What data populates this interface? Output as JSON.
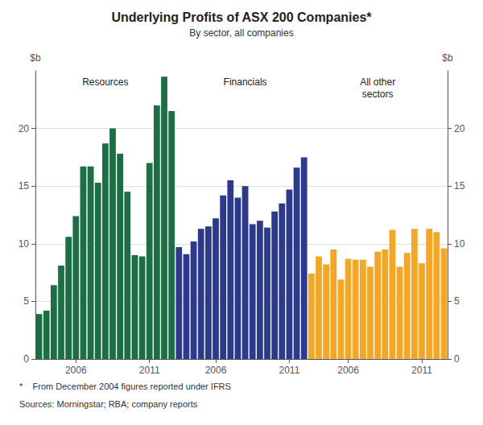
{
  "chart_data": {
    "type": "bar",
    "title": "Underlying Profits of ASX 200 Companies*",
    "subtitle": "By sector, all companies",
    "ylabel": "$b",
    "y2label": "$b",
    "annotations": [
      "*    From December 2004 figures reported under IFRS",
      "Sources: Morningstar; RBA; company reports"
    ],
    "categories": [
      null,
      null,
      null,
      null,
      null,
      "2006",
      null,
      null,
      null,
      null,
      null,
      null,
      null,
      null,
      null,
      "2011",
      null,
      null,
      null,
      null,
      null,
      null,
      null,
      null,
      "2006",
      null,
      null,
      null,
      null,
      null,
      null,
      null,
      null,
      null,
      "2011",
      null,
      null,
      null,
      null,
      null,
      null,
      null,
      "2006",
      null,
      null,
      null,
      null,
      null,
      null,
      null,
      null,
      null,
      "2011",
      null,
      null,
      null
    ],
    "series": [
      {
        "name": "Resources",
        "color": "#1a7044",
        "values": [
          3.9,
          4.2,
          6.4,
          8.1,
          10.6,
          12.4,
          16.7,
          16.7,
          15.3,
          18.7,
          20.0,
          17.8,
          14.5,
          9.0,
          8.9,
          17.0,
          22.0,
          24.5,
          21.5,
          null,
          null,
          null,
          null,
          null,
          null,
          null,
          null,
          null,
          null,
          null,
          null,
          null,
          null,
          null,
          null,
          null,
          null,
          null,
          null,
          null,
          null,
          null,
          null,
          null,
          null,
          null,
          null,
          null,
          null,
          null,
          null,
          null,
          null,
          null,
          null,
          null
        ]
      },
      {
        "name": "Financials",
        "color": "#2b3a8c",
        "values": [
          null,
          null,
          null,
          null,
          null,
          null,
          null,
          null,
          null,
          null,
          null,
          null,
          null,
          null,
          null,
          null,
          null,
          null,
          null,
          9.7,
          9.1,
          10.2,
          11.3,
          11.5,
          12.2,
          14.2,
          15.5,
          14.0,
          15.0,
          11.7,
          12.0,
          11.4,
          12.8,
          13.5,
          14.7,
          16.6,
          17.5,
          null,
          null,
          null,
          null,
          null,
          null,
          null,
          null,
          null,
          null,
          null,
          null,
          null,
          null,
          null,
          null,
          null,
          null,
          null
        ]
      },
      {
        "name": "All other\nsectors",
        "color": "#f5a623",
        "values": [
          null,
          null,
          null,
          null,
          null,
          null,
          null,
          null,
          null,
          null,
          null,
          null,
          null,
          null,
          null,
          null,
          null,
          null,
          null,
          null,
          null,
          null,
          null,
          null,
          null,
          null,
          null,
          null,
          null,
          null,
          null,
          null,
          null,
          null,
          null,
          null,
          null,
          7.4,
          8.9,
          8.2,
          9.5,
          6.9,
          8.7,
          8.6,
          8.6,
          8.0,
          9.3,
          9.5,
          11.2,
          8.0,
          9.2,
          11.3,
          8.3,
          11.3,
          11.0,
          9.6
        ]
      }
    ],
    "ylim": [
      0,
      25
    ],
    "yticks": [
      0,
      5,
      10,
      15,
      20
    ],
    "y2lim": [
      0,
      25
    ],
    "y2ticks": [
      0,
      5,
      10,
      15,
      20
    ],
    "grid": true
  }
}
